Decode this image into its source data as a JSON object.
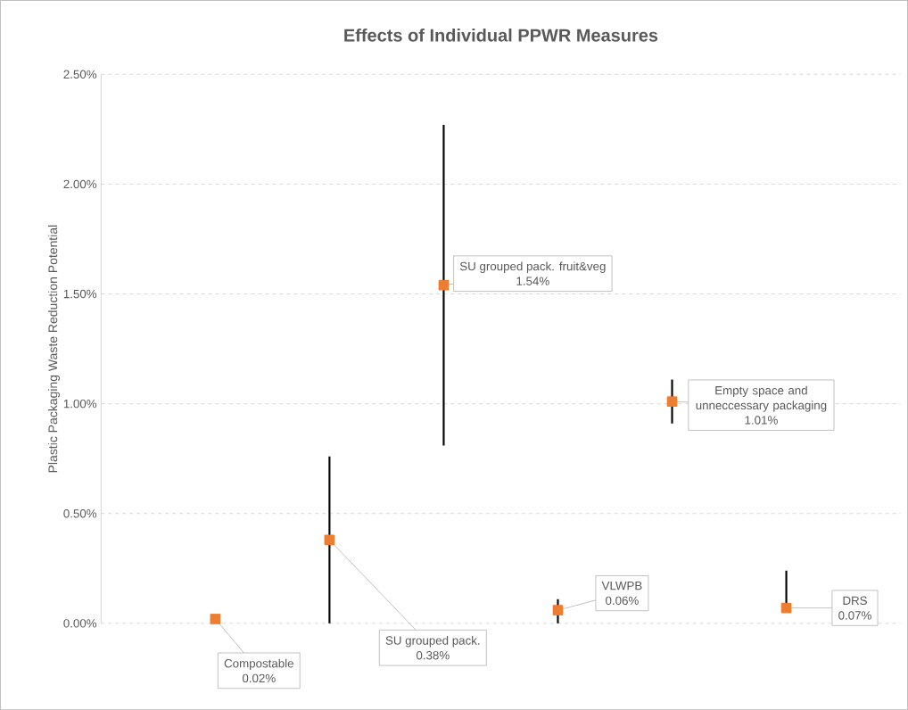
{
  "chart_data": {
    "type": "scatter",
    "title": "Effects of Individual PPWR Measures",
    "ylabel": "Plastic Packaging Waste Reduction Potential",
    "categories": [
      null,
      null,
      null,
      null,
      null,
      null
    ],
    "values": [
      0.02,
      0.38,
      1.54,
      0.06,
      1.01,
      0.07
    ],
    "value_labels": [
      "0.02%",
      "0.38%",
      "1.54%",
      "0.06%",
      "1.01%",
      "0.07%"
    ],
    "errors": [
      null,
      [
        0,
        0.76
      ],
      [
        0.81,
        2.27
      ],
      [
        0,
        0.11
      ],
      [
        0.91,
        1.11
      ],
      [
        0.05,
        0.24
      ]
    ],
    "color": "#ed7d31",
    "marker": "square",
    "grid": "y",
    "ylim": [
      0,
      2.5
    ],
    "yticks": [
      {
        "value": 0,
        "label": "0.00%"
      },
      {
        "value": 0.5,
        "label": "0.50%"
      },
      {
        "value": 1,
        "label": "1.00%"
      },
      {
        "value": 1.5,
        "label": "1.50%"
      },
      {
        "value": 2,
        "label": "2.00%"
      },
      {
        "value": 2.5,
        "label": "2.50%"
      }
    ],
    "annotations": [
      "Compostable",
      "SU grouped pack.",
      "SU grouped pack. fruit&veg",
      "VLWPB",
      "Empty space and unneccessary packaging",
      "DRS"
    ]
  }
}
